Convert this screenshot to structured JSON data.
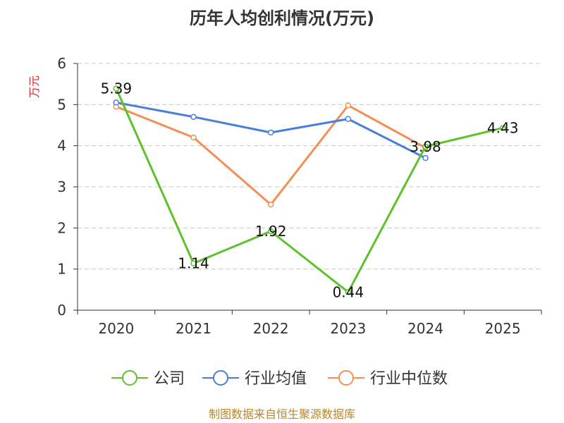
{
  "chart_data": {
    "type": "line",
    "title": "历年人均创利情况(万元)",
    "ylabel": "万元",
    "xlabel": "",
    "categories": [
      "2020",
      "2021",
      "2022",
      "2023",
      "2024",
      "2025"
    ],
    "ylim": [
      0,
      6
    ],
    "yticks": [
      0,
      1,
      2,
      3,
      4,
      5,
      6
    ],
    "grid": true,
    "legend_position": "bottom",
    "series": [
      {
        "name": "公司",
        "color": "#5ec12b",
        "values": [
          5.39,
          1.14,
          1.92,
          0.44,
          3.98,
          4.43
        ],
        "labels": [
          "5.39",
          "1.14",
          "1.92",
          "0.44",
          "3.98",
          "4.43"
        ]
      },
      {
        "name": "行业均值",
        "color": "#4a7fd8",
        "values": [
          5.05,
          4.7,
          4.32,
          4.65,
          3.7,
          null
        ]
      },
      {
        "name": "行业中位数",
        "color": "#f58e55",
        "values": [
          4.95,
          4.2,
          2.57,
          4.98,
          3.95,
          null
        ]
      }
    ],
    "source": "制图数据来自恒生聚源数据库"
  }
}
